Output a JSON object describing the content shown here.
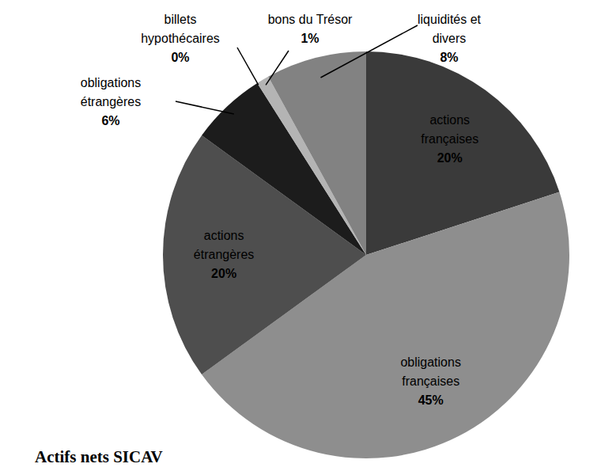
{
  "chart_data": {
    "type": "pie",
    "title": "Actifs nets SICAV",
    "categories": [
      "actions françaises",
      "obligations françaises",
      "actions étrangères",
      "obligations étrangères",
      "billets hypothécaires",
      "bons du Trésor",
      "liquidités et divers"
    ],
    "values": [
      20,
      45,
      20,
      6,
      0,
      1,
      8
    ],
    "value_labels": [
      "20%",
      "45%",
      "20%",
      "6%",
      "0%",
      "1%",
      "8%"
    ],
    "colors": [
      "#3a3a3a",
      "#8e8e8e",
      "#4e4e4e",
      "#1c1c1c",
      "#5a5a5a",
      "#b4b4b4",
      "#828282"
    ],
    "data_labels": true
  }
}
